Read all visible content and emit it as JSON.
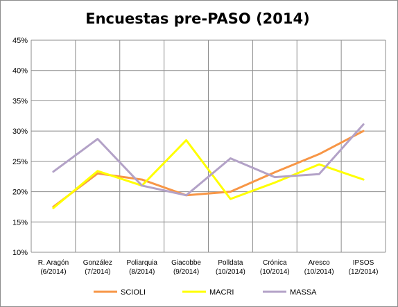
{
  "chart_data": {
    "type": "line",
    "title": "Encuestas pre-PASO (2014)",
    "xlabel": "",
    "ylabel": "",
    "categories": [
      [
        "R. Aragón",
        "(6/2014)"
      ],
      [
        "González",
        "(7/2014)"
      ],
      [
        "Poliarquia",
        "(8/2014)"
      ],
      [
        "Giacobbe",
        "(9/2014)"
      ],
      [
        "Polldata",
        "(10/2014)"
      ],
      [
        "Crónica",
        "(10/2014)"
      ],
      [
        "Aresco",
        "(10/2014)"
      ],
      [
        "IPSOS",
        "(12/2014)"
      ]
    ],
    "yticks": [
      "10%",
      "15%",
      "20%",
      "25%",
      "30%",
      "35%",
      "40%",
      "45%"
    ],
    "ylim": [
      10,
      45
    ],
    "grid": true,
    "legend_position": "bottom",
    "series": [
      {
        "name": "SCIOLI",
        "color": "#F79646",
        "values": [
          17.5,
          23.0,
          22.0,
          19.4,
          20.0,
          23.2,
          26.2,
          30.0
        ]
      },
      {
        "name": "MACRI",
        "color": "#FFFF00",
        "values": [
          17.3,
          23.4,
          21.0,
          28.5,
          18.8,
          21.5,
          24.5,
          22.0
        ]
      },
      {
        "name": "MASSA",
        "color": "#B3A2C7",
        "values": [
          23.3,
          28.7,
          21.0,
          19.4,
          25.5,
          22.4,
          22.9,
          31.1
        ]
      }
    ]
  }
}
